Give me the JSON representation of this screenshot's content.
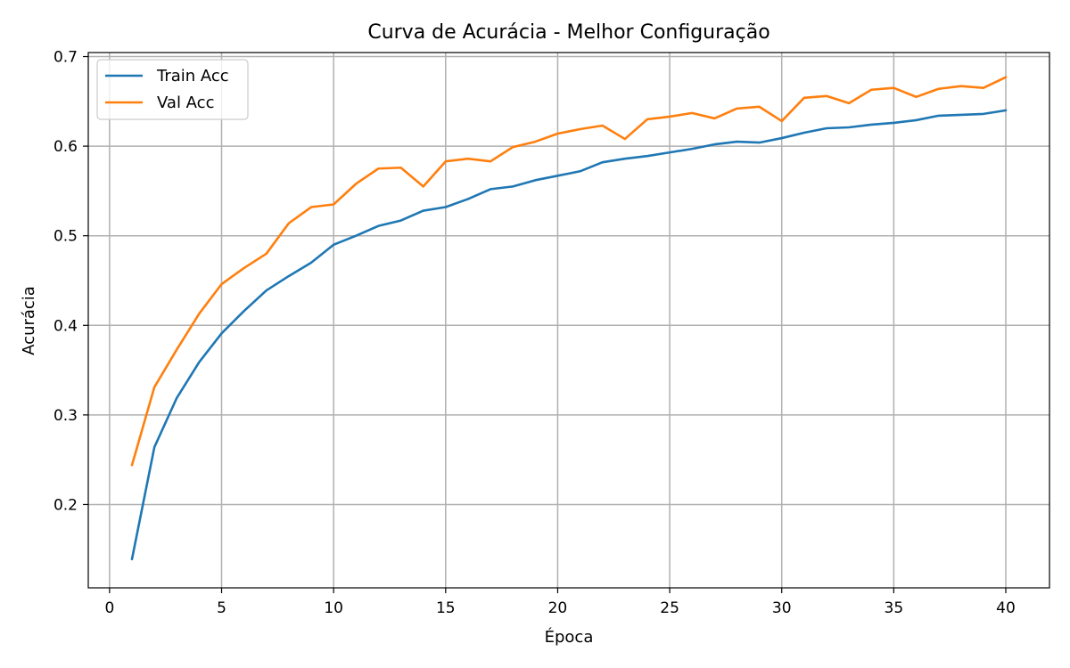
{
  "chart_data": {
    "type": "line",
    "title": "Curva de Acurácia - Melhor Configuração",
    "xlabel": "Época",
    "ylabel": "Acurácia",
    "xlim": [
      -0.95,
      41.95
    ],
    "ylim": [
      0.107,
      0.7045
    ],
    "xticks": [
      0,
      5,
      10,
      15,
      20,
      25,
      30,
      35,
      40
    ],
    "yticks": [
      0.2,
      0.3,
      0.4,
      0.5,
      0.6,
      0.7
    ],
    "grid": true,
    "legend_position": "upper left",
    "x": [
      1,
      2,
      3,
      4,
      5,
      6,
      7,
      8,
      9,
      10,
      11,
      12,
      13,
      14,
      15,
      16,
      17,
      18,
      19,
      20,
      21,
      22,
      23,
      24,
      25,
      26,
      27,
      28,
      29,
      30,
      31,
      32,
      33,
      34,
      35,
      36,
      37,
      38,
      39,
      40
    ],
    "series": [
      {
        "name": "Train Acc",
        "color": "#1f77b4",
        "values": [
          0.139,
          0.264,
          0.319,
          0.359,
          0.391,
          0.416,
          0.439,
          0.455,
          0.47,
          0.49,
          0.5,
          0.511,
          0.517,
          0.528,
          0.532,
          0.541,
          0.552,
          0.555,
          0.562,
          0.567,
          0.572,
          0.582,
          0.586,
          0.589,
          0.593,
          0.597,
          0.602,
          0.605,
          0.604,
          0.609,
          0.615,
          0.62,
          0.621,
          0.624,
          0.626,
          0.629,
          0.634,
          0.635,
          0.636,
          0.64
        ]
      },
      {
        "name": "Val Acc",
        "color": "#ff7f0e",
        "values": [
          0.244,
          0.331,
          0.373,
          0.413,
          0.446,
          0.464,
          0.48,
          0.514,
          0.532,
          0.535,
          0.558,
          0.575,
          0.576,
          0.555,
          0.583,
          0.586,
          0.583,
          0.599,
          0.605,
          0.614,
          0.619,
          0.623,
          0.608,
          0.63,
          0.633,
          0.637,
          0.631,
          0.642,
          0.644,
          0.628,
          0.654,
          0.656,
          0.648,
          0.663,
          0.665,
          0.655,
          0.664,
          0.667,
          0.665,
          0.677
        ]
      }
    ]
  }
}
